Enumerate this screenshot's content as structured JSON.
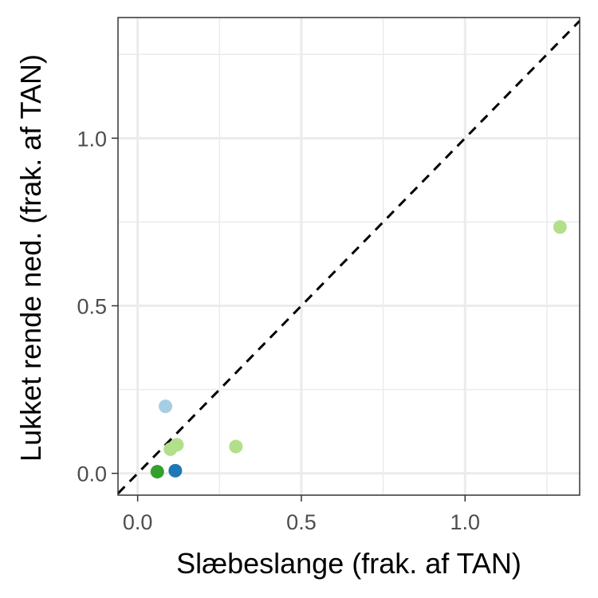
{
  "chart_data": {
    "type": "scatter",
    "title": "",
    "xlabel": "Slæbeslange (frak. af TAN)",
    "ylabel": "Lukket rende ned. (frak. af TAN)",
    "xlim": [
      -0.06,
      1.35
    ],
    "ylim": [
      -0.065,
      1.36
    ],
    "x_ticks": [
      {
        "value": 0.0,
        "label": "0.0"
      },
      {
        "value": 0.5,
        "label": "0.5"
      },
      {
        "value": 1.0,
        "label": "1.0"
      }
    ],
    "y_ticks": [
      {
        "value": 0.0,
        "label": "0.0"
      },
      {
        "value": 0.5,
        "label": "0.5"
      },
      {
        "value": 1.0,
        "label": "1.0"
      }
    ],
    "x_minor": [
      0.25,
      0.75,
      1.25
    ],
    "y_minor": [
      0.25,
      0.75,
      1.25
    ],
    "grid": true,
    "legend": "none",
    "reference_line": {
      "type": "identity",
      "style": "dashed",
      "color": "#000000"
    },
    "points": [
      {
        "x": 1.29,
        "y": 0.735,
        "color": "#b2df8a"
      },
      {
        "x": 0.3,
        "y": 0.08,
        "color": "#b2df8a"
      },
      {
        "x": 0.12,
        "y": 0.085,
        "color": "#b2df8a"
      },
      {
        "x": 0.1,
        "y": 0.072,
        "color": "#b2df8a"
      },
      {
        "x": 0.085,
        "y": 0.2,
        "color": "#a6cee3"
      },
      {
        "x": 0.115,
        "y": 0.008,
        "color": "#1f78b4"
      },
      {
        "x": 0.06,
        "y": 0.005,
        "color": "#33a02c"
      }
    ]
  }
}
